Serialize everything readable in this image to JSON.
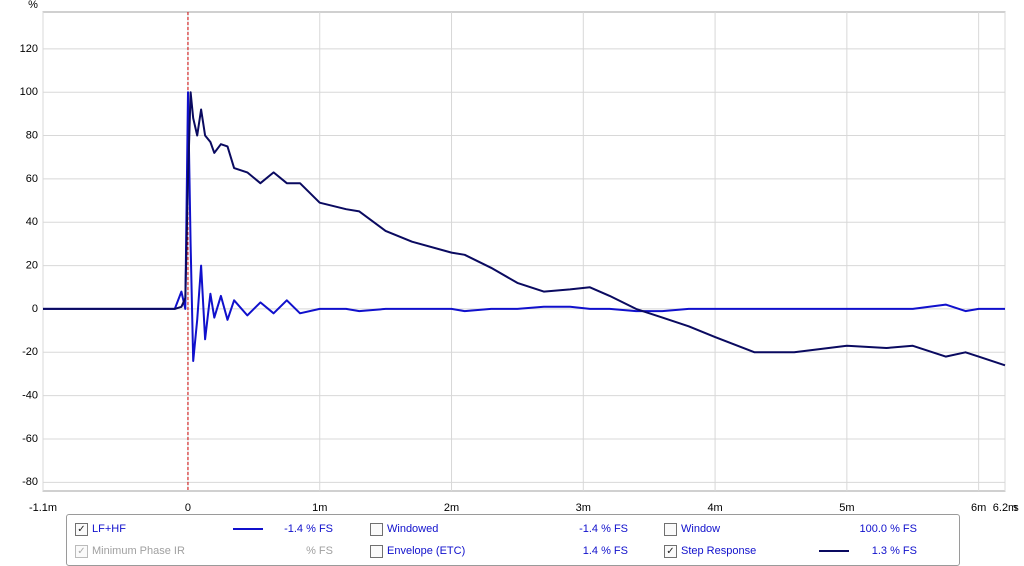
{
  "chart_data": {
    "type": "line",
    "y_label": "%",
    "x_unit": "s",
    "x": [
      -1.1,
      -0.5,
      -0.2,
      -0.1,
      -0.05,
      -0.02,
      0,
      0.02,
      0.04,
      0.07,
      0.1,
      0.13,
      0.17,
      0.2,
      0.25,
      0.3,
      0.35,
      0.45,
      0.55,
      0.65,
      0.75,
      0.85,
      1,
      1.2,
      1.3,
      1.5,
      1.7,
      2,
      2.1,
      2.3,
      2.5,
      2.7,
      2.9,
      3.05,
      3.2,
      3.4,
      3.6,
      3.8,
      4,
      4.3,
      4.6,
      5,
      5.3,
      5.5,
      5.75,
      5.9,
      6,
      6.2
    ],
    "xlim": [
      -1.1,
      6.2
    ],
    "ylim": [
      -84,
      137
    ],
    "xticks": [
      {
        "value": -1.1,
        "label": "-1.1m"
      },
      0,
      {
        "value": 1,
        "label": "1m"
      },
      {
        "value": 2,
        "label": "2m"
      },
      {
        "value": 3,
        "label": "3m"
      },
      {
        "value": 4,
        "label": "4m"
      },
      {
        "value": 5,
        "label": "5m"
      },
      {
        "value": 6,
        "label": "6m"
      },
      {
        "value": 6.2,
        "label": "6.2m"
      }
    ],
    "yticks": [
      -80,
      -60,
      -40,
      -20,
      0,
      20,
      40,
      60,
      80,
      100,
      120
    ],
    "grid": true,
    "reference_line": 0,
    "reference_color": "#cc0000",
    "series": [
      {
        "name": "LF+HF",
        "color": "#1010cc",
        "values": [
          0,
          0,
          0,
          0,
          8,
          0,
          100,
          30,
          -24,
          -5,
          20,
          -14,
          7,
          -4,
          6,
          -5,
          4,
          -3,
          3,
          -2,
          4,
          -2,
          0,
          0,
          -1,
          0,
          0,
          0,
          -1,
          0,
          0,
          1,
          1,
          0,
          0,
          -1,
          -1,
          0,
          0,
          0,
          0,
          0,
          0,
          0,
          2,
          -1,
          0,
          0
        ]
      },
      {
        "name": "Step Response",
        "color": "#0a0a60",
        "values": [
          0,
          0,
          0,
          0,
          1,
          5,
          60,
          100,
          88,
          80,
          92,
          80,
          77,
          72,
          76,
          75,
          65,
          63,
          58,
          63,
          58,
          58,
          49,
          46,
          45,
          36,
          31,
          26,
          25,
          19,
          12,
          8,
          9,
          10,
          6,
          0,
          -4,
          -8,
          -13,
          -20,
          -20,
          -17,
          -18,
          -17,
          -22,
          -20,
          -22,
          -26
        ]
      }
    ]
  },
  "panel": {
    "lf_hf": {
      "readout": "-1.4 % FS",
      "checked": true
    },
    "min_phase": {
      "label": "Minimum Phase IR",
      "readout": "% FS",
      "checked": true
    },
    "windowed": {
      "label": "Windowed",
      "readout": "-1.4 % FS",
      "checked": false
    },
    "envelope": {
      "label": "Envelope (ETC)",
      "readout": "1.4 % FS",
      "checked": false
    },
    "window": {
      "label": "Window",
      "readout": "100.0 % FS",
      "checked": false
    },
    "step": {
      "readout": "1.3 % FS",
      "checked": true
    }
  }
}
